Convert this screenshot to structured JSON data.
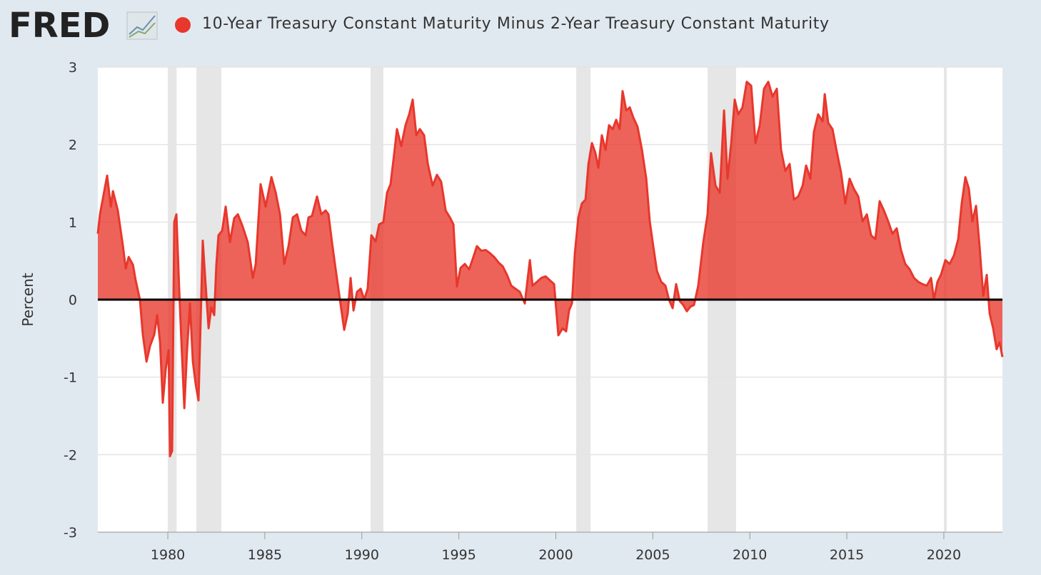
{
  "chart_data": {
    "type": "area",
    "logo": "FRED",
    "y_label": "Percent",
    "series": [
      {
        "name": "10-Year Treasury Constant Maturity Minus 2-Year Treasury Constant Maturity",
        "color": "#e8372c",
        "x": [
          1976.39,
          1976.5,
          1976.87,
          1977.06,
          1977.17,
          1977.42,
          1977.68,
          1977.83,
          1977.98,
          1978.2,
          1978.34,
          1978.56,
          1978.71,
          1978.9,
          1979.08,
          1979.3,
          1979.45,
          1979.6,
          1979.74,
          1979.89,
          1980.04,
          1980.11,
          1980.22,
          1980.33,
          1980.44,
          1980.59,
          1980.7,
          1980.85,
          1980.99,
          1981.14,
          1981.29,
          1981.44,
          1981.58,
          1981.8,
          1981.95,
          1982.1,
          1982.24,
          1982.39,
          1982.5,
          1982.61,
          1982.8,
          1982.98,
          1983.2,
          1983.42,
          1983.61,
          1983.86,
          1984.12,
          1984.38,
          1984.53,
          1984.78,
          1985.04,
          1985.34,
          1985.56,
          1985.78,
          1986.0,
          1986.22,
          1986.44,
          1986.66,
          1986.88,
          1987.1,
          1987.25,
          1987.43,
          1987.69,
          1987.91,
          1988.13,
          1988.28,
          1988.46,
          1988.65,
          1988.87,
          1989.09,
          1989.27,
          1989.42,
          1989.57,
          1989.75,
          1989.94,
          1990.12,
          1990.3,
          1990.49,
          1990.71,
          1990.89,
          1991.11,
          1991.3,
          1991.48,
          1991.67,
          1991.81,
          1992.03,
          1992.25,
          1992.44,
          1992.62,
          1992.81,
          1992.99,
          1993.21,
          1993.4,
          1993.65,
          1993.87,
          1994.09,
          1994.32,
          1994.54,
          1994.72,
          1994.9,
          1995.09,
          1995.31,
          1995.53,
          1995.75,
          1995.93,
          1996.16,
          1996.38,
          1996.6,
          1996.82,
          1997.04,
          1997.26,
          1997.48,
          1997.7,
          1997.92,
          1998.14,
          1998.4,
          1998.66,
          1998.8,
          1999.03,
          1999.25,
          1999.47,
          1999.69,
          1999.91,
          2000.13,
          2000.35,
          2000.53,
          2000.68,
          2000.83,
          2000.98,
          2001.16,
          2001.34,
          2001.53,
          2001.68,
          2001.86,
          2002.04,
          2002.19,
          2002.37,
          2002.56,
          2002.74,
          2002.93,
          2003.11,
          2003.29,
          2003.44,
          2003.63,
          2003.81,
          2003.99,
          2004.21,
          2004.44,
          2004.66,
          2004.84,
          2005.02,
          2005.21,
          2005.43,
          2005.65,
          2005.83,
          2006.02,
          2006.2,
          2006.39,
          2006.57,
          2006.75,
          2006.94,
          2007.12,
          2007.34,
          2007.6,
          2007.82,
          2008.0,
          2008.23,
          2008.45,
          2008.67,
          2008.85,
          2009.04,
          2009.22,
          2009.4,
          2009.62,
          2009.84,
          2010.07,
          2010.29,
          2010.51,
          2010.73,
          2010.95,
          2011.17,
          2011.39,
          2011.61,
          2011.83,
          2012.05,
          2012.27,
          2012.49,
          2012.72,
          2012.9,
          2013.12,
          2013.3,
          2013.52,
          2013.75,
          2013.86,
          2014.04,
          2014.26,
          2014.48,
          2014.7,
          2014.92,
          2015.14,
          2015.36,
          2015.59,
          2015.81,
          2016.03,
          2016.25,
          2016.47,
          2016.69,
          2016.91,
          2017.13,
          2017.35,
          2017.57,
          2017.79,
          2018.01,
          2018.24,
          2018.46,
          2018.68,
          2018.9,
          2019.12,
          2019.34,
          2019.49,
          2019.67,
          2019.85,
          2020.08,
          2020.3,
          2020.52,
          2020.74,
          2020.92,
          2021.11,
          2021.29,
          2021.47,
          2021.66,
          2021.84,
          2022.03,
          2022.21,
          2022.36,
          2022.54,
          2022.72,
          2022.87,
          2023.02
        ],
        "values": [
          0.85,
          1.1,
          1.6,
          1.2,
          1.4,
          1.15,
          0.7,
          0.4,
          0.55,
          0.45,
          0.25,
          0,
          -0.45,
          -0.8,
          -0.6,
          -0.45,
          -0.2,
          -0.55,
          -1.33,
          -0.9,
          -0.65,
          -2.02,
          -1.95,
          1.0,
          1.1,
          0.1,
          -0.55,
          -1.4,
          -0.65,
          -0.05,
          -0.8,
          -1.1,
          -1.3,
          0.76,
          0.18,
          -0.37,
          -0.1,
          -0.2,
          0.45,
          0.83,
          0.89,
          1.2,
          0.74,
          1.05,
          1.1,
          0.94,
          0.74,
          0.28,
          0.46,
          1.49,
          1.2,
          1.58,
          1.38,
          1.1,
          0.46,
          0.69,
          1.06,
          1.1,
          0.89,
          0.83,
          1.06,
          1.08,
          1.33,
          1.1,
          1.15,
          1.1,
          0.74,
          0.39,
          0,
          -0.39,
          -0.18,
          0.28,
          -0.14,
          0.1,
          0.14,
          0,
          0.14,
          0.83,
          0.75,
          0.97,
          1.0,
          1.38,
          1.49,
          1.89,
          2.2,
          1.98,
          2.25,
          2.39,
          2.58,
          2.12,
          2.2,
          2.12,
          1.75,
          1.47,
          1.61,
          1.52,
          1.15,
          1.06,
          0.97,
          0.17,
          0.41,
          0.46,
          0.39,
          0.55,
          0.69,
          0.63,
          0.64,
          0.6,
          0.55,
          0.48,
          0.43,
          0.32,
          0.18,
          0.14,
          0.1,
          -0.05,
          0.51,
          0.18,
          0.23,
          0.28,
          0.3,
          0.25,
          0.2,
          -0.46,
          -0.37,
          -0.41,
          -0.14,
          -0.05,
          0.6,
          1.06,
          1.24,
          1.29,
          1.75,
          2.02,
          1.89,
          1.7,
          2.12,
          1.93,
          2.25,
          2.2,
          2.32,
          2.2,
          2.69,
          2.44,
          2.48,
          2.35,
          2.23,
          1.93,
          1.56,
          1.01,
          0.69,
          0.37,
          0.23,
          0.18,
          0,
          -0.11,
          0.2,
          -0.02,
          -0.07,
          -0.15,
          -0.09,
          -0.07,
          0.18,
          0.74,
          1.1,
          1.89,
          1.47,
          1.38,
          2.44,
          1.56,
          2.02,
          2.58,
          2.39,
          2.48,
          2.81,
          2.76,
          2.02,
          2.25,
          2.72,
          2.81,
          2.62,
          2.72,
          1.93,
          1.66,
          1.75,
          1.29,
          1.33,
          1.47,
          1.73,
          1.56,
          2.16,
          2.39,
          2.3,
          2.65,
          2.28,
          2.2,
          1.91,
          1.64,
          1.24,
          1.56,
          1.43,
          1.33,
          1.01,
          1.1,
          0.83,
          0.78,
          1.27,
          1.15,
          1.01,
          0.85,
          0.92,
          0.64,
          0.46,
          0.39,
          0.28,
          0.23,
          0.2,
          0.18,
          0.28,
          0,
          0.23,
          0.32,
          0.51,
          0.46,
          0.57,
          0.78,
          1.24,
          1.58,
          1.43,
          1.01,
          1.21,
          0.69,
          0.05,
          0.32,
          -0.18,
          -0.37,
          -0.64,
          -0.55,
          -0.74
        ]
      }
    ],
    "recessions": [
      [
        1980.0,
        1980.45
      ],
      [
        1981.47,
        1982.76
      ],
      [
        1990.45,
        1991.11
      ],
      [
        2001.05,
        2001.79
      ],
      [
        2007.82,
        2009.29
      ],
      [
        2020.0,
        2020.15
      ]
    ],
    "xlim": [
      1976.39,
      2023.02
    ],
    "xticks": [
      1980,
      1985,
      1990,
      1995,
      2000,
      2005,
      2010,
      2015,
      2020
    ],
    "ylim": [
      -3,
      3
    ],
    "yticks": [
      -3,
      -2,
      -1,
      0,
      1,
      2,
      3
    ],
    "grid": true
  }
}
